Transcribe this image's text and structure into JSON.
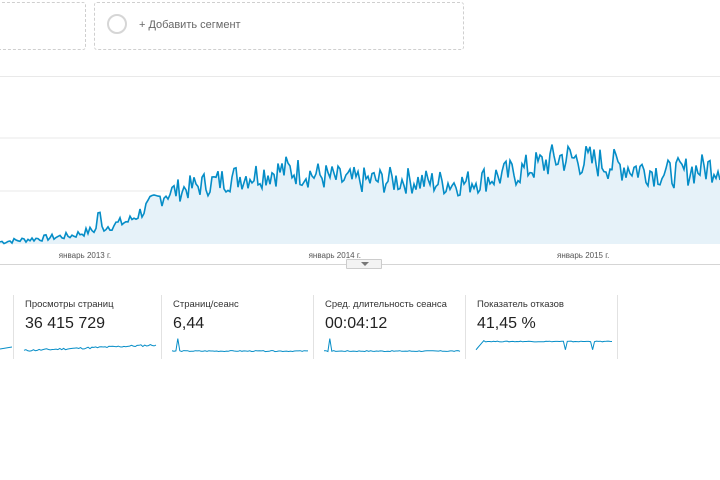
{
  "segments": {
    "add_label": "+ Добавить сегмент"
  },
  "chart_data": {
    "type": "area",
    "x_tick_labels": [
      "январь 2013 г.",
      "январь 2014 г.",
      "январь 2015 г."
    ],
    "grid": true,
    "series": [
      {
        "color": "#058dc7",
        "fill": "#e6f2f9",
        "approx_level": [
          [
            0,
            0.02
          ],
          [
            0.1,
            0.08
          ],
          [
            0.18,
            0.22
          ],
          [
            0.23,
            0.48
          ],
          [
            0.32,
            0.62
          ],
          [
            0.4,
            0.7
          ],
          [
            0.48,
            0.6
          ],
          [
            0.56,
            0.6
          ],
          [
            0.64,
            0.57
          ],
          [
            0.72,
            0.68
          ],
          [
            0.78,
            0.82
          ],
          [
            0.86,
            0.74
          ],
          [
            0.93,
            0.66
          ],
          [
            1.0,
            0.74
          ]
        ]
      }
    ]
  },
  "metrics": [
    {
      "label": "Просмотры страниц",
      "value": "36 415 729",
      "spark": "growth"
    },
    {
      "label": "Страниц/сеанс",
      "value": "6,44",
      "spark": "early-spike"
    },
    {
      "label": "Сред. длительность сеанса",
      "value": "00:04:12",
      "spark": "early-spike"
    },
    {
      "label": "Показатель отказов",
      "value": "41,45 %",
      "spark": "flat-high"
    }
  ],
  "colors": {
    "line": "#058dc7",
    "fill": "#e6f2f9",
    "grid": "#e9e9e9"
  }
}
